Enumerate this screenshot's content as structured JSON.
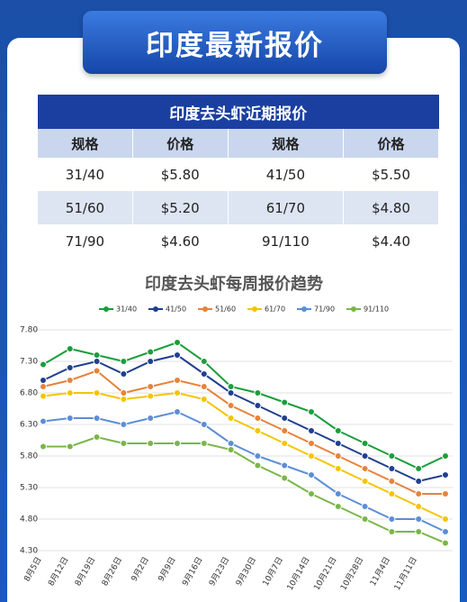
{
  "header": {
    "title": "印度最新报价"
  },
  "table": {
    "title": "印度去头虾近期报价",
    "columns": [
      "规格",
      "价格",
      "规格",
      "价格"
    ],
    "rows": [
      [
        "31/40",
        "$5.80",
        "41/50",
        "$5.50"
      ],
      [
        "51/60",
        "$5.20",
        "61/70",
        "$4.80"
      ],
      [
        "71/90",
        "$4.60",
        "91/110",
        "$4.40"
      ]
    ]
  },
  "chart_data": {
    "type": "line",
    "title": "印度去头虾每周报价趋势",
    "categories": [
      "8月5日",
      "8月12日",
      "8月19日",
      "8月26日",
      "9月2日",
      "9月9日",
      "9月16日",
      "9月23日",
      "9月30日",
      "10月7日",
      "10月14日",
      "10月21日",
      "10月28日",
      "11月4日",
      "11月11日",
      null
    ],
    "series": [
      {
        "name": "31/40",
        "color": "#1a9e3a",
        "values": [
          7.25,
          7.5,
          7.4,
          7.3,
          7.45,
          7.6,
          7.3,
          6.9,
          6.8,
          6.65,
          6.5,
          6.2,
          6.0,
          5.8,
          5.6,
          5.8
        ]
      },
      {
        "name": "41/50",
        "color": "#1f3f8f",
        "values": [
          7.0,
          7.2,
          7.3,
          7.1,
          7.3,
          7.4,
          7.1,
          6.8,
          6.6,
          6.4,
          6.2,
          6.0,
          5.8,
          5.6,
          5.4,
          5.5
        ]
      },
      {
        "name": "51/60",
        "color": "#e8823a",
        "values": [
          6.9,
          7.0,
          7.15,
          6.8,
          6.9,
          7.0,
          6.9,
          6.6,
          6.4,
          6.2,
          6.0,
          5.8,
          5.6,
          5.4,
          5.2,
          5.2
        ]
      },
      {
        "name": "61/70",
        "color": "#f5c400",
        "values": [
          6.75,
          6.8,
          6.8,
          6.7,
          6.75,
          6.8,
          6.7,
          6.4,
          6.2,
          6.0,
          5.8,
          5.6,
          5.4,
          5.2,
          5.0,
          4.8
        ]
      },
      {
        "name": "71/90",
        "color": "#5b8ed6",
        "values": [
          6.35,
          6.4,
          6.4,
          6.3,
          6.4,
          6.5,
          6.3,
          6.0,
          5.8,
          5.65,
          5.5,
          5.2,
          5.0,
          4.8,
          4.8,
          4.6
        ]
      },
      {
        "name": "91/110",
        "color": "#7ab648",
        "values": [
          5.95,
          5.95,
          6.1,
          6.0,
          6.0,
          6.0,
          6.0,
          5.9,
          5.65,
          5.45,
          5.2,
          5.0,
          4.8,
          4.6,
          4.6,
          4.42
        ]
      }
    ],
    "ylim": [
      4.3,
      7.8
    ],
    "yticks": [
      {
        "value": 4.3,
        "label": "4.30"
      },
      {
        "value": 4.8,
        "label": "4.80"
      },
      {
        "value": 5.3,
        "label": "5.30"
      },
      {
        "value": 5.8,
        "label": "5.80"
      },
      {
        "value": 6.3,
        "label": "6.30"
      },
      {
        "value": 6.8,
        "label": "6.80"
      },
      {
        "value": 7.3,
        "label": "7.30"
      },
      {
        "value": 7.8,
        "label": "7.80"
      }
    ],
    "grid": true,
    "legend": "top"
  }
}
